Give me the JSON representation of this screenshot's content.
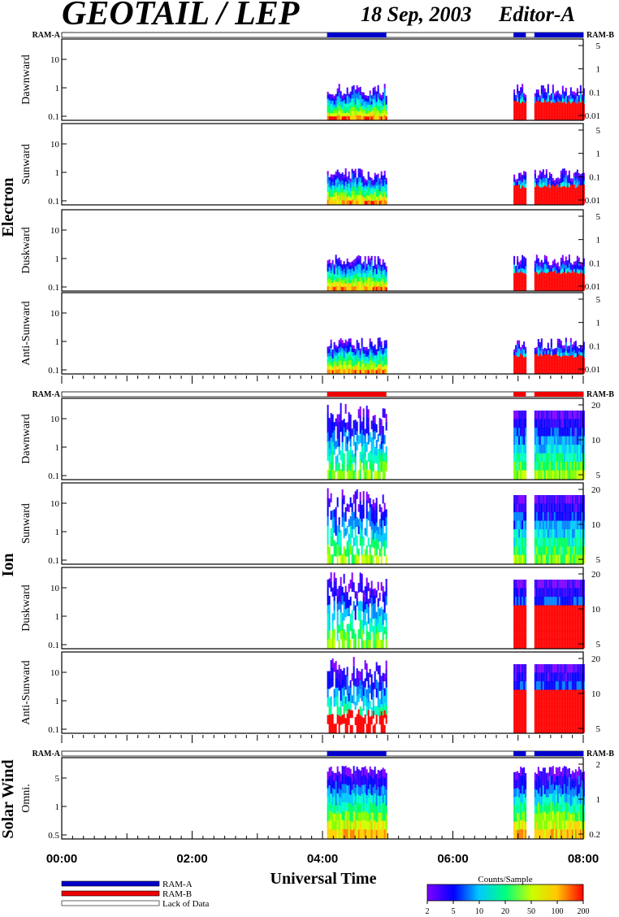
{
  "header": {
    "title": "GEOTAIL / LEP",
    "date": "18 Sep, 2003",
    "editor": "Editor-A"
  },
  "ram_labels": {
    "left": "RAM-A",
    "right": "RAM-B"
  },
  "groups": [
    {
      "name": "Electron",
      "panels": [
        "Dawnward",
        "Sunward",
        "Duskward",
        "Anti-Sunward"
      ]
    },
    {
      "name": "Ion",
      "panels": [
        "Dawnward",
        "Sunward",
        "Duskward",
        "Anti-Sunward"
      ]
    },
    {
      "name": "Solar Wind",
      "panels": [
        "Omni."
      ]
    }
  ],
  "chart_data": {
    "type": "heatmap",
    "xlabel": "Universal Time",
    "x_range": [
      "00:00",
      "08:00"
    ],
    "x_ticks": [
      "00:00",
      "02:00",
      "04:00",
      "06:00",
      "08:00"
    ],
    "data_intervals_hours": [
      [
        4.07,
        4.98
      ],
      [
        6.93,
        7.12
      ],
      [
        7.25,
        8.0
      ]
    ],
    "ram_bars": {
      "electron": [
        {
          "from": 4.07,
          "to": 4.98,
          "mode": "RAM-A"
        },
        {
          "from": 6.93,
          "to": 7.12,
          "mode": "RAM-A"
        },
        {
          "from": 7.25,
          "to": 8.0,
          "mode": "RAM-A"
        }
      ],
      "ion": [
        {
          "from": 4.07,
          "to": 4.98,
          "mode": "RAM-B"
        },
        {
          "from": 6.93,
          "to": 7.12,
          "mode": "RAM-B"
        },
        {
          "from": 7.25,
          "to": 8.0,
          "mode": "RAM-B"
        }
      ],
      "solar_wind": [
        {
          "from": 4.07,
          "to": 4.98,
          "mode": "RAM-A"
        },
        {
          "from": 6.93,
          "to": 7.12,
          "mode": "RAM-A"
        },
        {
          "from": 7.25,
          "to": 8.0,
          "mode": "RAM-A"
        }
      ]
    },
    "electron_left_ticks": [
      "10",
      "1",
      "0.1"
    ],
    "electron_right_ticks": [
      "5",
      "1",
      "0.1",
      "0.01"
    ],
    "ion_left_ticks": [
      "10",
      "1",
      "0.1"
    ],
    "ion_right_ticks": [
      "20",
      "10",
      "5"
    ],
    "solar_wind_left_ticks": [
      "5",
      "1",
      "0.5"
    ],
    "solar_wind_right_ticks": [
      "2",
      "1",
      "0.2"
    ],
    "colorbar": {
      "title": "Counts/Sample",
      "ticks": [
        "2",
        "5",
        "10",
        "20",
        "50",
        "100",
        "200"
      ],
      "colors": [
        "#8000ff",
        "#0000ff",
        "#00c8ff",
        "#00ff80",
        "#c8ff00",
        "#ffc800",
        "#ff0000"
      ]
    }
  },
  "legend": [
    {
      "label": "RAM-A",
      "color": "#0000cc"
    },
    {
      "label": "RAM-B",
      "color": "#ee0000"
    },
    {
      "label": "Lack of Data",
      "color": "#ffffff"
    }
  ]
}
